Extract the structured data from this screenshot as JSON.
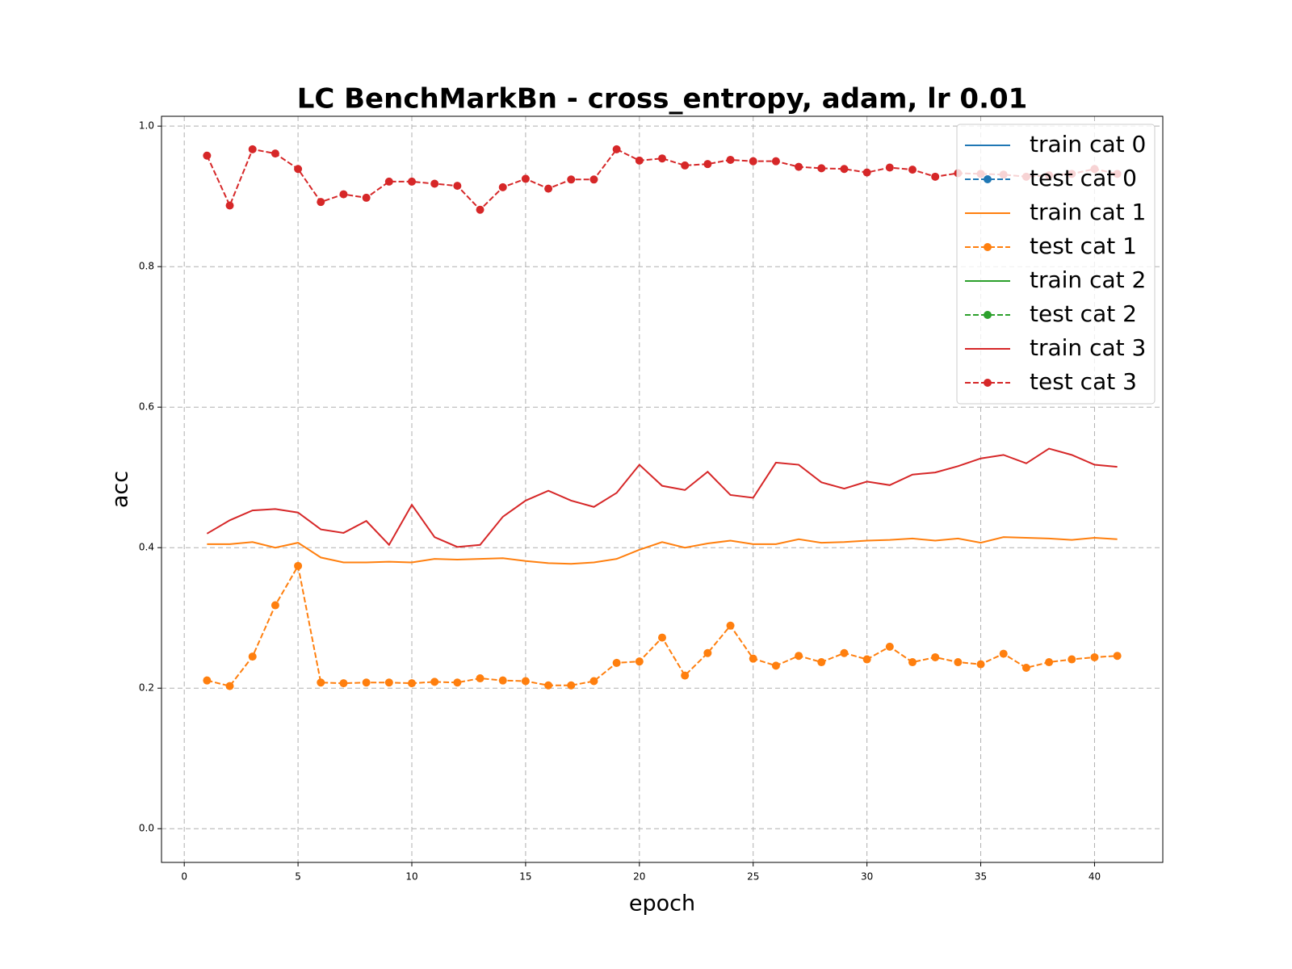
{
  "chart_data": {
    "type": "line",
    "title": "LC BenchMarkBn - cross_entropy, adam, lr 0.01",
    "xlabel": "epoch",
    "ylabel": "acc",
    "x": [
      1,
      2,
      3,
      4,
      5,
      6,
      7,
      8,
      9,
      10,
      11,
      12,
      13,
      14,
      15,
      16,
      17,
      18,
      19,
      20,
      21,
      22,
      23,
      24,
      25,
      26,
      27,
      28,
      29,
      30,
      31,
      32,
      33,
      34,
      35,
      36,
      37,
      38,
      39,
      40,
      41
    ],
    "series": [
      {
        "name": "train cat 0",
        "color": "#1f77b4",
        "linestyle": "solid",
        "marker": false,
        "values": [
          null,
          null,
          null,
          null,
          null,
          null,
          null,
          null,
          null,
          null,
          null,
          null,
          null,
          null,
          null,
          null,
          null,
          null,
          null,
          null,
          null,
          null,
          null,
          null,
          null,
          null,
          null,
          null,
          null,
          null,
          null,
          null,
          null,
          null,
          null,
          null,
          null,
          null,
          null,
          null,
          null
        ]
      },
      {
        "name": "test cat 0",
        "color": "#1f77b4",
        "linestyle": "dashed",
        "marker": true,
        "values": [
          null,
          null,
          null,
          null,
          null,
          null,
          null,
          null,
          null,
          null,
          null,
          null,
          null,
          null,
          null,
          null,
          null,
          null,
          null,
          null,
          null,
          null,
          null,
          null,
          null,
          null,
          null,
          null,
          null,
          null,
          null,
          null,
          null,
          null,
          null,
          null,
          null,
          null,
          null,
          null,
          null
        ]
      },
      {
        "name": "train cat 1",
        "color": "#ff7f0e",
        "linestyle": "solid",
        "marker": false,
        "values": [
          0.405,
          0.405,
          0.408,
          0.4,
          0.407,
          0.386,
          0.379,
          0.379,
          0.38,
          0.379,
          0.384,
          0.383,
          0.384,
          0.385,
          0.381,
          0.378,
          0.377,
          0.379,
          0.384,
          0.397,
          0.408,
          0.4,
          0.406,
          0.41,
          0.405,
          0.405,
          0.412,
          0.407,
          0.408,
          0.41,
          0.411,
          0.413,
          0.41,
          0.413,
          0.407,
          0.415,
          0.414,
          0.413,
          0.411,
          0.414,
          0.412
        ]
      },
      {
        "name": "test cat 1",
        "color": "#ff7f0e",
        "linestyle": "dashed",
        "marker": true,
        "values": [
          0.211,
          0.203,
          0.245,
          0.318,
          0.374,
          0.208,
          0.207,
          0.208,
          0.208,
          0.207,
          0.209,
          0.208,
          0.214,
          0.211,
          0.21,
          0.204,
          0.204,
          0.21,
          0.236,
          0.238,
          0.272,
          0.218,
          0.25,
          0.289,
          0.242,
          0.232,
          0.246,
          0.237,
          0.25,
          0.241,
          0.259,
          0.237,
          0.244,
          0.237,
          0.234,
          0.249,
          0.229,
          0.237,
          0.241,
          0.244,
          0.246
        ]
      },
      {
        "name": "train cat 2",
        "color": "#2ca02c",
        "linestyle": "solid",
        "marker": false,
        "values": [
          null,
          null,
          null,
          null,
          null,
          null,
          null,
          null,
          null,
          null,
          null,
          null,
          null,
          null,
          null,
          null,
          null,
          null,
          null,
          null,
          null,
          null,
          null,
          null,
          null,
          null,
          null,
          null,
          null,
          null,
          null,
          null,
          null,
          null,
          null,
          null,
          null,
          null,
          null,
          null,
          null
        ]
      },
      {
        "name": "test cat 2",
        "color": "#2ca02c",
        "linestyle": "dashed",
        "marker": true,
        "values": [
          null,
          null,
          null,
          null,
          null,
          null,
          null,
          null,
          null,
          null,
          null,
          null,
          null,
          null,
          null,
          null,
          null,
          null,
          null,
          null,
          null,
          null,
          null,
          null,
          null,
          null,
          null,
          null,
          null,
          null,
          null,
          null,
          null,
          null,
          null,
          null,
          null,
          null,
          null,
          null,
          null
        ]
      },
      {
        "name": "train cat 3",
        "color": "#d62728",
        "linestyle": "solid",
        "marker": false,
        "values": [
          0.42,
          0.439,
          0.453,
          0.455,
          0.45,
          0.426,
          0.421,
          0.438,
          0.404,
          0.461,
          0.415,
          0.401,
          0.404,
          0.444,
          0.467,
          0.481,
          0.467,
          0.458,
          0.478,
          0.518,
          0.488,
          0.482,
          0.508,
          0.475,
          0.471,
          0.521,
          0.518,
          0.493,
          0.484,
          0.494,
          0.489,
          0.504,
          0.507,
          0.516,
          0.527,
          0.532,
          0.52,
          0.541,
          0.532,
          0.518,
          0.515
        ]
      },
      {
        "name": "test cat 3",
        "color": "#d62728",
        "linestyle": "dashed",
        "marker": true,
        "values": [
          0.958,
          0.887,
          0.967,
          0.961,
          0.939,
          0.892,
          0.903,
          0.898,
          0.921,
          0.921,
          0.918,
          0.915,
          0.881,
          0.913,
          0.925,
          0.911,
          0.924,
          0.924,
          0.967,
          0.951,
          0.954,
          0.944,
          0.946,
          0.952,
          0.95,
          0.95,
          0.942,
          0.94,
          0.939,
          0.934,
          0.941,
          0.938,
          0.928,
          0.933,
          0.932,
          0.931,
          0.928,
          0.93,
          0.932,
          0.939,
          0.932
        ]
      }
    ],
    "xlim": [
      -1,
      43
    ],
    "xticks": [
      0,
      5,
      10,
      15,
      20,
      25,
      30,
      35,
      40
    ],
    "ylim": [
      -0.048,
      1.014
    ],
    "yticks": [
      {
        "value": 0,
        "label": "0.0"
      },
      0.2,
      0.4,
      0.6,
      0.8,
      {
        "value": 1,
        "label": "1.0"
      }
    ],
    "grid": true,
    "legend": "upper right"
  }
}
